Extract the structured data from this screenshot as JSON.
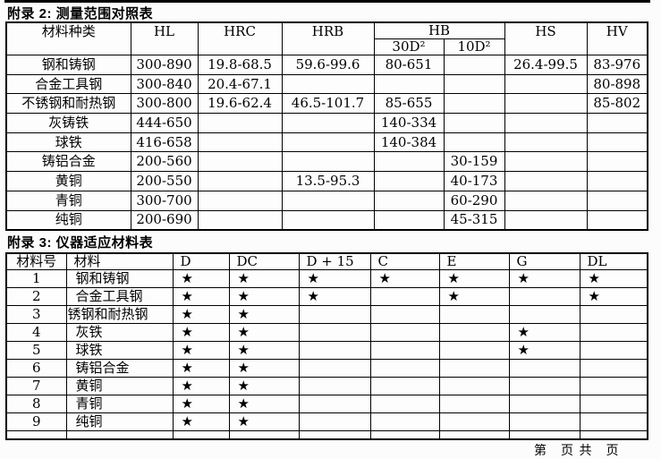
{
  "colors": {
    "ink": "#000000",
    "paper": "#fcfcfc"
  },
  "footer": "第　页 共　页",
  "appendix2": {
    "title": "附录 2: 测量范围对照表",
    "col_header_material": "材料种类",
    "columns": [
      "HL",
      "HRC",
      "HRB",
      "HB",
      "HS",
      "HV"
    ],
    "hb_sub": [
      "30D²",
      "10D²"
    ],
    "rows": [
      {
        "material": "钢和铸钢",
        "values": [
          "300-890",
          "19.8-68.5",
          "59.6-99.6",
          "80-651",
          "",
          "26.4-99.5",
          "83-976"
        ]
      },
      {
        "material": "合金工具钢",
        "values": [
          "300-840",
          "20.4-67.1",
          "",
          "",
          "",
          "",
          "80-898"
        ]
      },
      {
        "material": "不锈钢和耐热钢",
        "values": [
          "300-800",
          "19.6-62.4",
          "46.5-101.7",
          "85-655",
          "",
          "",
          "85-802"
        ]
      },
      {
        "material": "灰铸铁",
        "values": [
          "444-650",
          "",
          "",
          "140-334",
          "",
          "",
          ""
        ]
      },
      {
        "material": "球铁",
        "values": [
          "416-658",
          "",
          "",
          "140-384",
          "",
          "",
          ""
        ]
      },
      {
        "material": "铸铝合金",
        "values": [
          "200-560",
          "",
          "",
          "",
          "30-159",
          "",
          ""
        ]
      },
      {
        "material": "黄铜",
        "values": [
          "200-550",
          "",
          "13.5-95.3",
          "",
          "40-173",
          "",
          ""
        ]
      },
      {
        "material": "青铜",
        "values": [
          "300-700",
          "",
          "",
          "",
          "60-290",
          "",
          ""
        ]
      },
      {
        "material": "纯铜",
        "values": [
          "200-690",
          "",
          "",
          "",
          "45-315",
          "",
          ""
        ]
      }
    ]
  },
  "appendix3": {
    "title": "附录 3: 仪器适应材料表",
    "headers": [
      "材料号",
      "材料",
      "D",
      "DC",
      "D + 15",
      "C",
      "E",
      "G",
      "DL"
    ],
    "star": "★",
    "rows": [
      {
        "no": "1",
        "material": "钢和铸钢",
        "flush": false,
        "marks": [
          1,
          1,
          1,
          1,
          1,
          1,
          1
        ]
      },
      {
        "no": "2",
        "material": "合金工具钢",
        "flush": false,
        "marks": [
          1,
          1,
          1,
          0,
          1,
          0,
          1
        ]
      },
      {
        "no": "3",
        "material": "锈钢和耐热钢",
        "flush": true,
        "marks": [
          1,
          1,
          0,
          0,
          0,
          0,
          0
        ]
      },
      {
        "no": "4",
        "material": "灰铁",
        "flush": false,
        "marks": [
          1,
          1,
          0,
          0,
          0,
          1,
          0
        ]
      },
      {
        "no": "5",
        "material": "球铁",
        "flush": false,
        "marks": [
          1,
          1,
          0,
          0,
          0,
          1,
          0
        ]
      },
      {
        "no": "6",
        "material": "铸铝合金",
        "flush": false,
        "marks": [
          1,
          1,
          0,
          0,
          0,
          0,
          0
        ]
      },
      {
        "no": "7",
        "material": "黄铜",
        "flush": false,
        "marks": [
          1,
          1,
          0,
          0,
          0,
          0,
          0
        ]
      },
      {
        "no": "8",
        "material": "青铜",
        "flush": false,
        "marks": [
          1,
          1,
          0,
          0,
          0,
          0,
          0
        ]
      },
      {
        "no": "9",
        "material": "纯铜",
        "flush": false,
        "marks": [
          1,
          1,
          0,
          0,
          0,
          0,
          0
        ]
      },
      {
        "no": "",
        "material": "",
        "flush": false,
        "marks": [
          0,
          0,
          0,
          0,
          0,
          0,
          0
        ]
      }
    ]
  }
}
